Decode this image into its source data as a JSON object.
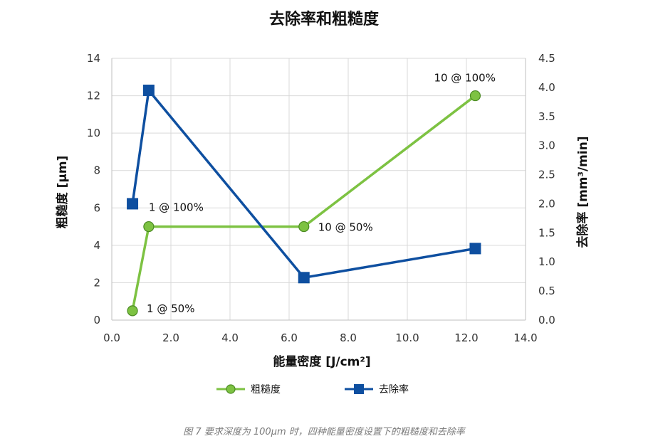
{
  "chart_data": {
    "type": "line",
    "title": "去除率和粗糙度",
    "xlabel": "能量密度 [J/cm²]",
    "ylabel_left": "粗糙度 [µm]",
    "ylabel_right": "去除率 [mm³/min]",
    "xlim": [
      0,
      14
    ],
    "ylim_left": [
      0,
      14
    ],
    "ylim_right": [
      0,
      4.5
    ],
    "x_ticks": [
      "0.0",
      "2.0",
      "4.0",
      "6.0",
      "8.0",
      "10.0",
      "12.0",
      "14.0"
    ],
    "y_left_ticks": [
      "0",
      "2",
      "4",
      "6",
      "8",
      "10",
      "12",
      "14"
    ],
    "y_right_ticks": [
      "0.0",
      "0.5",
      "1.0",
      "1.5",
      "2.0",
      "2.5",
      "3.0",
      "3.5",
      "4.0",
      "4.5"
    ],
    "grid": true,
    "legend_position": "bottom",
    "series": [
      {
        "name": "粗糙度",
        "axis": "left",
        "color": "#7dc242",
        "marker": "circle",
        "x": [
          0.7,
          1.25,
          6.5,
          12.3
        ],
        "y": [
          0.5,
          5.0,
          5.0,
          12.0
        ]
      },
      {
        "name": "去除率",
        "axis": "right",
        "color": "#0e4fa0",
        "marker": "square",
        "x": [
          0.7,
          1.25,
          6.5,
          12.3
        ],
        "y": [
          2.0,
          3.95,
          0.73,
          1.23
        ]
      }
    ],
    "annotations": [
      {
        "text": "1 @ 50%",
        "x": 0.7,
        "y": 0.5
      },
      {
        "text": "1 @ 100%",
        "x": 1.25,
        "y": 5.0
      },
      {
        "text": "10 @ 50%",
        "x": 6.5,
        "y": 5.0
      },
      {
        "text": "10 @ 100%",
        "x": 12.3,
        "y": 12.0
      }
    ]
  },
  "caption": "图 7 要求深度为 100µm 时，四种能量密度设置下的粗糙度和去除率"
}
